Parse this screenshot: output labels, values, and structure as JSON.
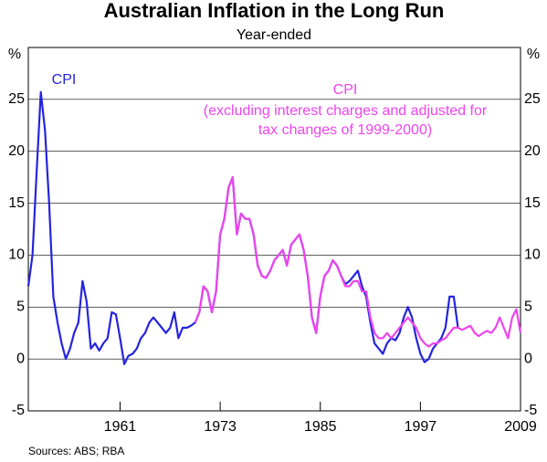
{
  "chart_data": {
    "type": "line",
    "title": "Australian Inflation in the Long Run",
    "subtitle": "Year-ended",
    "y_unit": "%",
    "source": "Sources: ABS; RBA",
    "annotations": [
      "CPI",
      "CPI",
      "(excluding interest charges and adjusted for",
      "tax changes of 1999-2000)"
    ],
    "xlim": [
      1950,
      2009
    ],
    "xticks": [
      1961,
      1973,
      1985,
      1997,
      2009
    ],
    "ylim": [
      -5,
      30
    ],
    "yticks": [
      -5,
      0,
      5,
      10,
      15,
      20,
      25
    ],
    "grid": true,
    "x": [
      1950,
      1950.5,
      1951,
      1951.5,
      1952,
      1952.5,
      1953,
      1953.5,
      1954,
      1954.5,
      1955,
      1955.5,
      1956,
      1956.5,
      1957,
      1957.5,
      1958,
      1958.5,
      1959,
      1959.5,
      1960,
      1960.5,
      1961,
      1961.5,
      1962,
      1962.5,
      1963,
      1963.5,
      1964,
      1964.5,
      1965,
      1965.5,
      1966,
      1966.5,
      1967,
      1967.5,
      1968,
      1968.5,
      1969,
      1969.5,
      1970,
      1970.5,
      1971,
      1971.5,
      1972,
      1972.5,
      1973,
      1973.5,
      1974,
      1974.5,
      1975,
      1975.5,
      1976,
      1976.5,
      1977,
      1977.5,
      1978,
      1978.5,
      1979,
      1979.5,
      1980,
      1980.5,
      1981,
      1981.5,
      1982,
      1982.5,
      1983,
      1983.5,
      1984,
      1984.5,
      1985,
      1985.5,
      1986,
      1986.5,
      1987,
      1987.5,
      1988,
      1988.5,
      1989,
      1989.5,
      1990,
      1990.5,
      1991,
      1991.5,
      1992,
      1992.5,
      1993,
      1993.5,
      1994,
      1994.5,
      1995,
      1995.5,
      1996,
      1996.5,
      1997,
      1997.5,
      1998,
      1998.5,
      1999,
      1999.5,
      2000,
      2000.5,
      2001,
      2001.5,
      2002,
      2002.5,
      2003,
      2003.5,
      2004,
      2004.5,
      2005,
      2005.5,
      2006,
      2006.5,
      2007,
      2007.5,
      2008,
      2008.5,
      2009
    ],
    "series": [
      {
        "name": "CPI",
        "color": "#2424e0",
        "values": [
          7,
          10,
          18,
          25.7,
          22,
          15,
          6,
          3.5,
          1.5,
          0,
          1,
          2.5,
          3.5,
          7.5,
          5.5,
          1,
          1.5,
          0.8,
          1.5,
          2,
          4.5,
          4.3,
          2,
          -0.5,
          0.3,
          0.5,
          1,
          2,
          2.5,
          3.5,
          4,
          3.5,
          3,
          2.5,
          3,
          4.5,
          2,
          3,
          3,
          3.2,
          3.5,
          4.5,
          7,
          6.5,
          4.5,
          6.5,
          12,
          13.5,
          16.5,
          17.5,
          12,
          14,
          13.5,
          13.5,
          12,
          9,
          8,
          7.8,
          8.5,
          9.5,
          10,
          10.5,
          9,
          11,
          11.5,
          12,
          10.5,
          8,
          4,
          2.5,
          6,
          8,
          8.5,
          9.5,
          9,
          8,
          7.2,
          7.5,
          8,
          8.5,
          7,
          6,
          3.5,
          1.5,
          1,
          0.5,
          1.5,
          2,
          1.8,
          2.5,
          4,
          5,
          4,
          2,
          0.5,
          -0.3,
          0,
          1,
          1.5,
          2,
          3,
          6,
          6,
          3,
          null,
          null,
          null,
          null,
          null,
          null,
          null,
          null,
          null,
          null,
          null,
          null,
          null,
          null,
          null
        ]
      },
      {
        "name": "CPI (excluding interest charges and adjusted for tax changes of 1999-2000)",
        "color": "#ee44ee",
        "values": [
          null,
          null,
          null,
          null,
          null,
          null,
          null,
          null,
          null,
          null,
          null,
          null,
          null,
          null,
          null,
          null,
          null,
          null,
          null,
          null,
          null,
          null,
          null,
          null,
          null,
          null,
          null,
          null,
          null,
          null,
          null,
          null,
          null,
          null,
          null,
          null,
          null,
          null,
          null,
          null,
          3.5,
          4.5,
          7,
          6.5,
          4.5,
          6.5,
          12,
          13.5,
          16.5,
          17.5,
          12,
          14,
          13.5,
          13.5,
          12,
          9,
          8,
          7.8,
          8.5,
          9.5,
          10,
          10.5,
          9,
          11,
          11.5,
          12,
          10.5,
          8,
          4,
          2.5,
          6,
          8,
          8.5,
          9.5,
          9,
          8,
          7,
          7,
          7.5,
          7.5,
          6.5,
          6.5,
          4,
          2.5,
          2,
          2,
          2.5,
          2,
          2.5,
          3,
          3.5,
          4,
          3.5,
          3,
          2,
          1.5,
          1.2,
          1.5,
          1.5,
          1.8,
          2,
          2.5,
          3,
          3,
          2.8,
          3,
          3.2,
          2.5,
          2.2,
          2.5,
          2.7,
          2.5,
          3,
          4,
          3,
          2,
          4,
          4.8,
          2.5
        ]
      }
    ]
  }
}
